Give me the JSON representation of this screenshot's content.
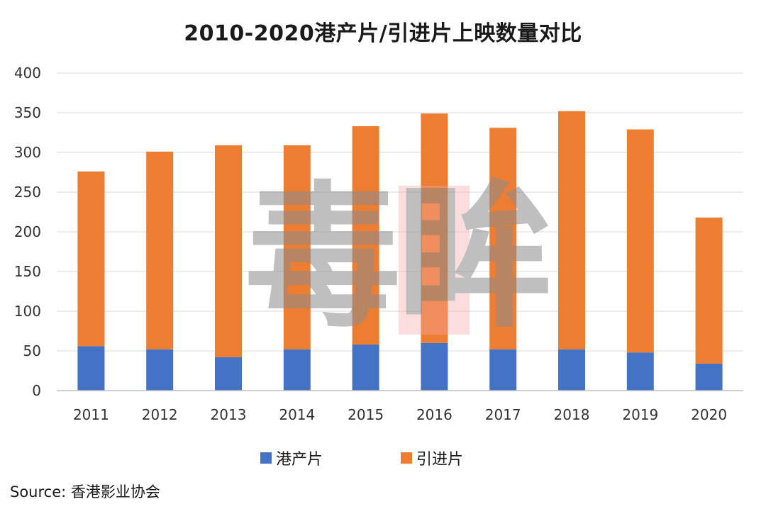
{
  "chart_data": {
    "type": "bar",
    "stacked": true,
    "title": "2010-2020港产片/引进片上映数量对比",
    "categories": [
      "2011",
      "2012",
      "2013",
      "2014",
      "2015",
      "2016",
      "2017",
      "2018",
      "2019",
      "2020"
    ],
    "series": [
      {
        "name": "港产片",
        "color": "#4472c4",
        "values": [
          56,
          52,
          42,
          52,
          58,
          60,
          52,
          52,
          48,
          34
        ]
      },
      {
        "name": "引进片",
        "color": "#ed7d31",
        "values": [
          220,
          249,
          267,
          257,
          275,
          289,
          279,
          300,
          281,
          184
        ]
      }
    ],
    "ylim": [
      0,
      400
    ],
    "yticks": [
      0,
      50,
      100,
      150,
      200,
      250,
      300,
      350,
      400
    ],
    "grid": true,
    "legend": "bottom-center",
    "xlabel": "",
    "ylabel": ""
  },
  "source": "Source: 香港影业协会",
  "watermark": "毒眸"
}
